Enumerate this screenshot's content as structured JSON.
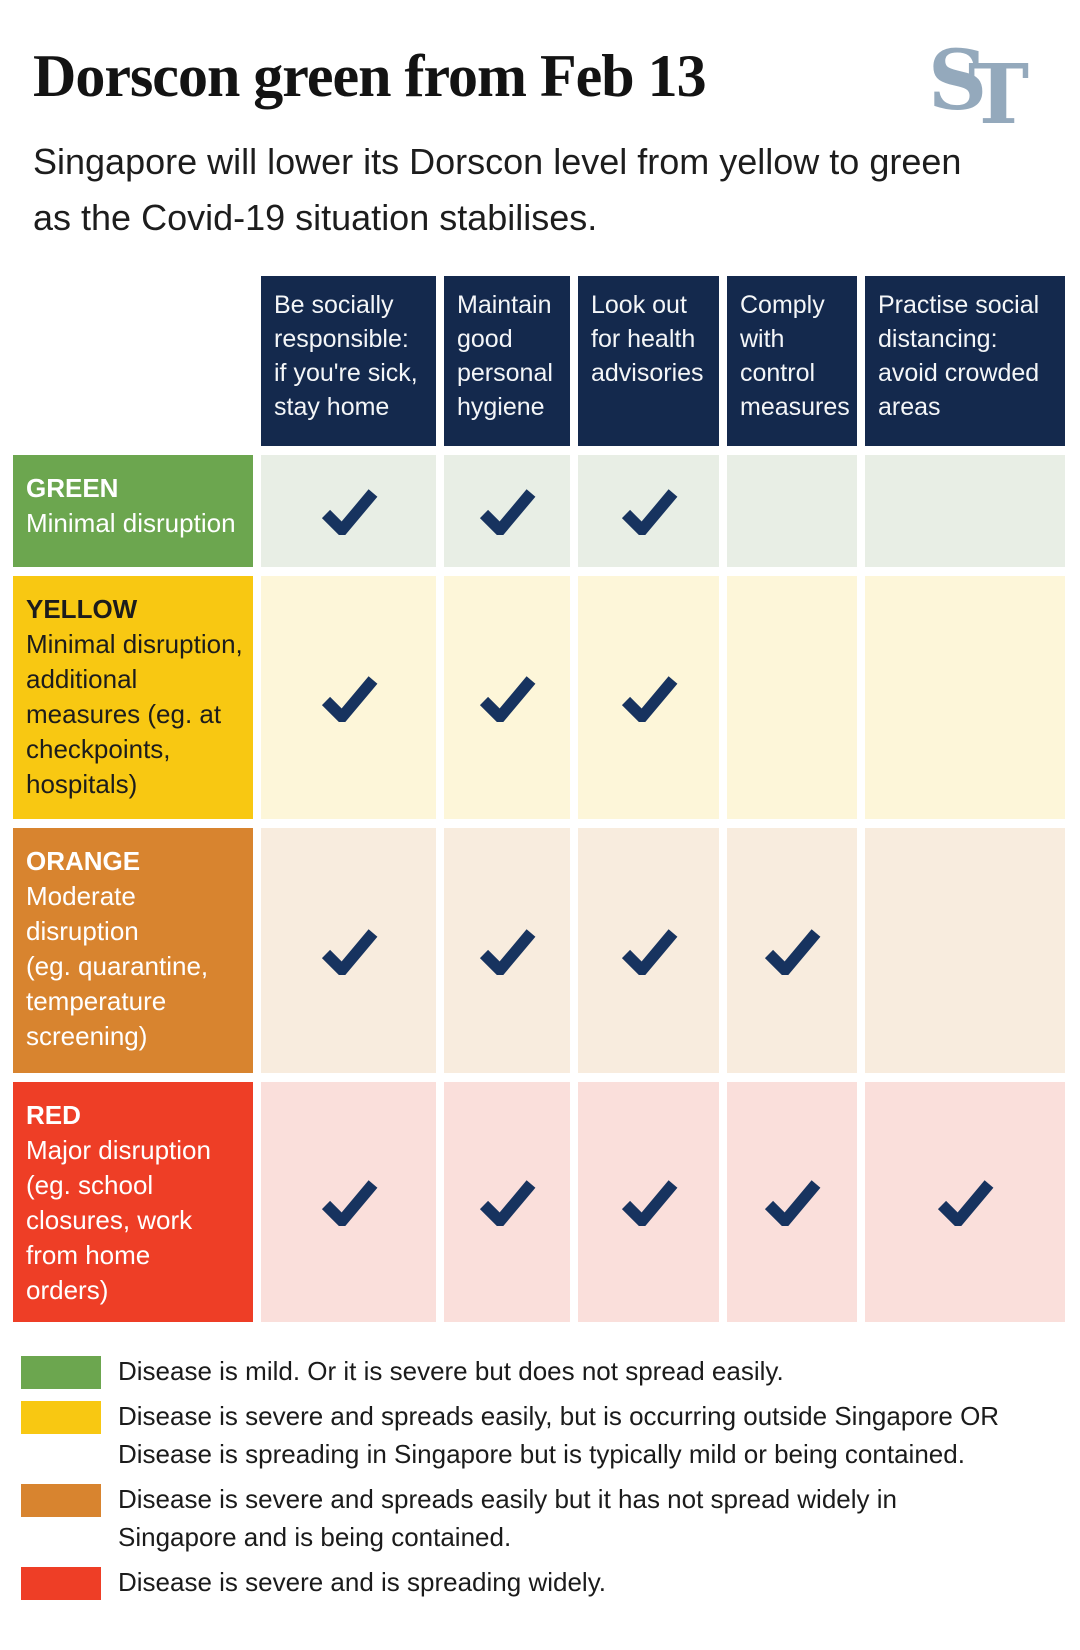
{
  "header": {
    "title": "Dorscon green from Feb 13",
    "subtitle": "Singapore will lower its Dorscon level from yellow to green as the Covid-19 situation stabilises.",
    "logo": {
      "s": "S",
      "t": "T",
      "color": "#94a9bc"
    }
  },
  "table": {
    "header_bg": "#14294d",
    "header_text_color": "#f4f6f8",
    "check_color": "#17335f",
    "columns": [
      {
        "label": "Be socially\nresponsible:\nif you're sick,\nstay home"
      },
      {
        "label": "Maintain\ngood\npersonal\nhygiene"
      },
      {
        "label": "Look out\nfor health\nadvisories"
      },
      {
        "label": "Comply\nwith\ncontrol\nmeasures"
      },
      {
        "label": "Practise social\ndistancing:\navoid crowded\nareas"
      }
    ],
    "rows": [
      {
        "name": "GREEN",
        "desc": "Minimal disruption",
        "color": "#6ca64f",
        "tint": "#e8eee5",
        "text_color": "#ffffff",
        "checks": [
          true,
          true,
          true,
          false,
          false
        ]
      },
      {
        "name": "YELLOW",
        "desc": "Minimal disruption,\nadditional\nmeasures (eg. at\ncheckpoints,\nhospitals)",
        "color": "#f8c812",
        "tint": "#fdf6d9",
        "text_color": "#1c1c1c",
        "checks": [
          true,
          true,
          true,
          false,
          false
        ]
      },
      {
        "name": "ORANGE",
        "desc": "Moderate\ndisruption\n(eg. quarantine,\ntemperature\nscreening)",
        "color": "#d8842f",
        "tint": "#f8ecde",
        "text_color": "#ffffff",
        "checks": [
          true,
          true,
          true,
          true,
          false
        ]
      },
      {
        "name": "RED",
        "desc": "Major disruption\n(eg. school\nclosures, work\nfrom home\norders)",
        "color": "#ee3e26",
        "tint": "#fadfdb",
        "text_color": "#ffffff",
        "checks": [
          true,
          true,
          true,
          true,
          true
        ]
      }
    ]
  },
  "legend": [
    {
      "color": "#6ca64f",
      "text": "Disease is mild. Or it is severe but does not spread easily."
    },
    {
      "color": "#f8c812",
      "text": "Disease is severe and spreads easily, but is occurring outside Singapore OR\nDisease is spreading in Singapore but is typically mild or being contained."
    },
    {
      "color": "#d8842f",
      "text": "Disease is severe and spreads easily but it has not spread widely in\nSingapore and is being contained."
    },
    {
      "color": "#ee3e26",
      "text": "Disease is severe and is spreading widely."
    }
  ],
  "chart_data": {
    "type": "table",
    "title": "Dorscon green from Feb 13",
    "columns": [
      "Be socially responsible: if you're sick, stay home",
      "Maintain good personal hygiene",
      "Look out for health advisories",
      "Comply with control measures",
      "Practise social distancing: avoid crowded areas"
    ],
    "rows": [
      "GREEN Minimal disruption",
      "YELLOW Minimal disruption, additional measures (eg. at checkpoints, hospitals)",
      "ORANGE Moderate disruption (eg. quarantine, temperature screening)",
      "RED Major disruption (eg. school closures, work from home orders)"
    ],
    "values": [
      [
        1,
        1,
        1,
        0,
        0
      ],
      [
        1,
        1,
        1,
        0,
        0
      ],
      [
        1,
        1,
        1,
        1,
        0
      ],
      [
        1,
        1,
        1,
        1,
        1
      ]
    ],
    "legend_position": "bottom"
  }
}
